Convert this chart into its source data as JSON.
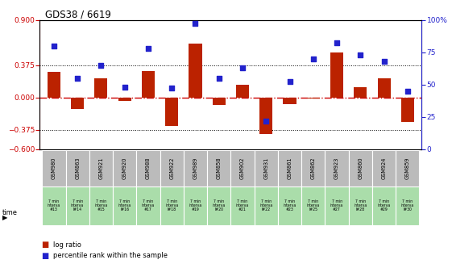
{
  "title": "GDS38 / 6619",
  "samples": [
    "GSM980",
    "GSM863",
    "GSM921",
    "GSM920",
    "GSM988",
    "GSM922",
    "GSM989",
    "GSM858",
    "GSM902",
    "GSM931",
    "GSM861",
    "GSM862",
    "GSM923",
    "GSM860",
    "GSM924",
    "GSM859"
  ],
  "time_labels": [
    "7 min\ninterva\n#13",
    "7 min\ninterva\nl#14",
    "7 min\ninterva\n#15",
    "7 min\ninterva\nl#16",
    "7 min\ninterva\n#17",
    "7 min\ninterva\nl#18",
    "7 min\ninterva\n#19",
    "7 min\ninterva\nl#20",
    "7 min\ninterva\n#21",
    "7 min\ninterva\nl#22",
    "7 min\ninterva\n#23",
    "7 min\ninterva\nl#25",
    "7 min\ninterva\n#27",
    "7 min\ninterva\nl#28",
    "7 min\ninterva\n#29",
    "7 min\ninterva\nl#30"
  ],
  "log_ratio": [
    0.3,
    -0.13,
    0.22,
    -0.04,
    0.31,
    -0.33,
    0.62,
    -0.09,
    0.15,
    -0.42,
    -0.08,
    -0.01,
    0.52,
    0.12,
    0.22,
    -0.28
  ],
  "percentile": [
    80,
    55,
    65,
    48,
    78,
    47,
    97,
    55,
    63,
    22,
    52,
    70,
    82,
    73,
    68,
    45
  ],
  "ylim_left": [
    -0.6,
    0.9
  ],
  "ylim_right": [
    0,
    100
  ],
  "yticks_left": [
    -0.6,
    -0.375,
    0,
    0.375,
    0.9
  ],
  "yticks_right": [
    0,
    25,
    50,
    75,
    100
  ],
  "hlines": [
    0.375,
    -0.375
  ],
  "bar_color": "#bb2200",
  "dot_color": "#2222cc",
  "zero_line_color": "#cc0000",
  "bg_color": "#ffffff",
  "sample_bg": "#bbbbbb",
  "time_bg": "#aaddaa",
  "bar_width": 0.55,
  "legend_items": [
    "log ratio",
    "percentile rank within the sample"
  ]
}
